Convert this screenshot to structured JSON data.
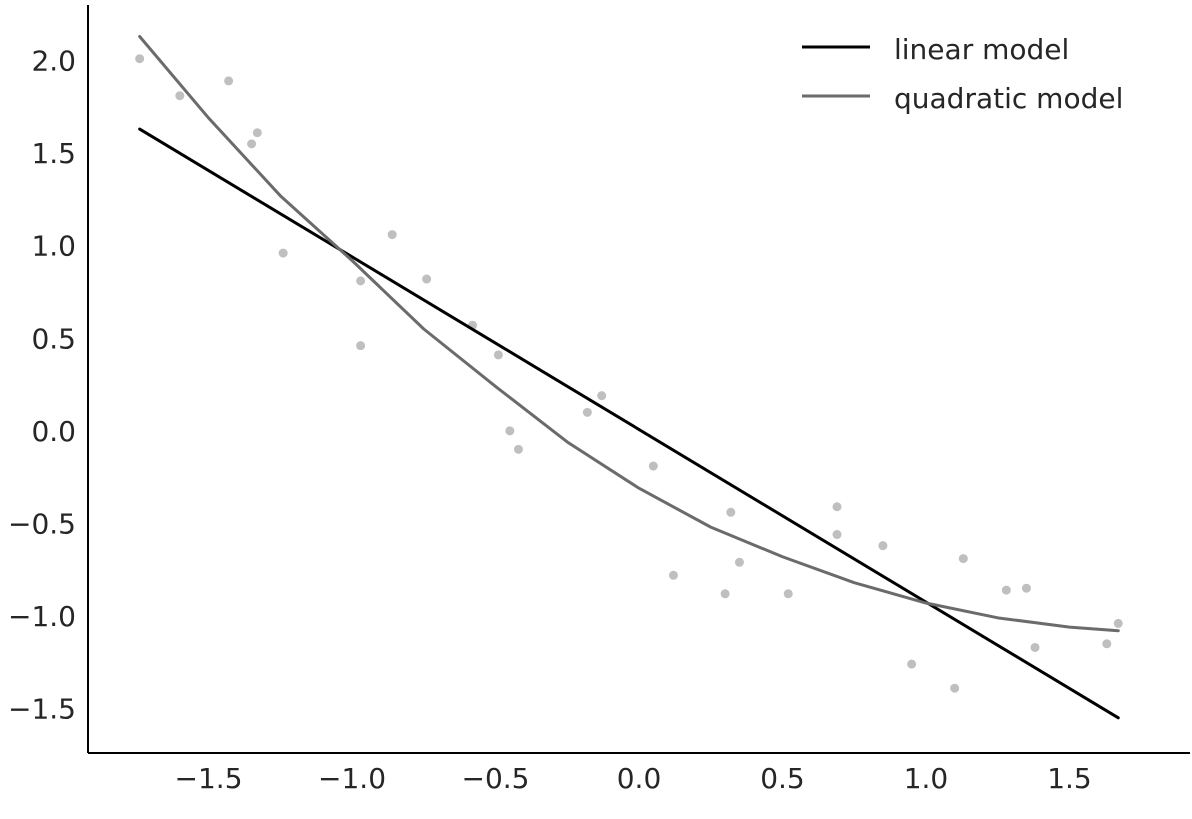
{
  "chart_data": {
    "type": "scatter",
    "title": "",
    "xlabel": "",
    "ylabel": "",
    "xlim": [
      -1.92,
      1.92
    ],
    "ylim": [
      -1.74,
      2.3
    ],
    "x_ticks": [
      -1.5,
      -1.0,
      -0.5,
      0.0,
      0.5,
      1.0,
      1.5
    ],
    "x_tick_labels": [
      "−1.5",
      "−1.0",
      "−0.5",
      "0.0",
      "0.5",
      "1.0",
      "1.5"
    ],
    "y_ticks": [
      2.0,
      1.5,
      1.0,
      0.5,
      0.0,
      -0.5,
      -1.0,
      -1.5
    ],
    "y_tick_labels": [
      "2.0",
      "1.5",
      "1.0",
      "0.5",
      "0.0",
      "−0.5",
      "−1.0",
      "−1.5"
    ],
    "grid": false,
    "legend_position": "top-right",
    "points": {
      "color": "#bfbfbf",
      "x": [
        -1.74,
        -1.6,
        -1.43,
        -1.35,
        -1.33,
        -1.24,
        -0.97,
        -0.97,
        -0.86,
        -0.74,
        -0.58,
        -0.49,
        -0.45,
        -0.42,
        -0.18,
        -0.13,
        0.05,
        0.12,
        0.3,
        0.32,
        0.35,
        0.52,
        0.69,
        0.69,
        0.85,
        0.95,
        1.1,
        1.13,
        1.28,
        1.35,
        1.38,
        1.63,
        1.67
      ],
      "y": [
        2.01,
        1.81,
        1.89,
        1.55,
        1.61,
        0.96,
        0.81,
        0.46,
        1.06,
        0.82,
        0.57,
        0.41,
        0.0,
        -0.1,
        0.1,
        0.19,
        -0.19,
        -0.78,
        -0.88,
        -0.44,
        -0.71,
        -0.88,
        -0.41,
        -0.56,
        -0.62,
        -1.26,
        -1.39,
        -0.69,
        -0.86,
        -0.85,
        -1.17,
        -1.15,
        -1.04
      ]
    },
    "series": [
      {
        "name": "linear model",
        "color": "#000000",
        "x": [
          -1.74,
          1.67
        ],
        "y": [
          1.63,
          -1.55
        ]
      },
      {
        "name": "quadratic model",
        "color": "#6b6b6b",
        "x": [
          -1.74,
          -1.5,
          -1.25,
          -1.0,
          -0.75,
          -0.5,
          -0.25,
          0.0,
          0.25,
          0.5,
          0.75,
          1.0,
          1.25,
          1.5,
          1.67
        ],
        "y": [
          2.13,
          1.69,
          1.27,
          0.92,
          0.55,
          0.24,
          -0.06,
          -0.31,
          -0.52,
          -0.68,
          -0.82,
          -0.93,
          -1.01,
          -1.06,
          -1.08
        ]
      }
    ]
  }
}
